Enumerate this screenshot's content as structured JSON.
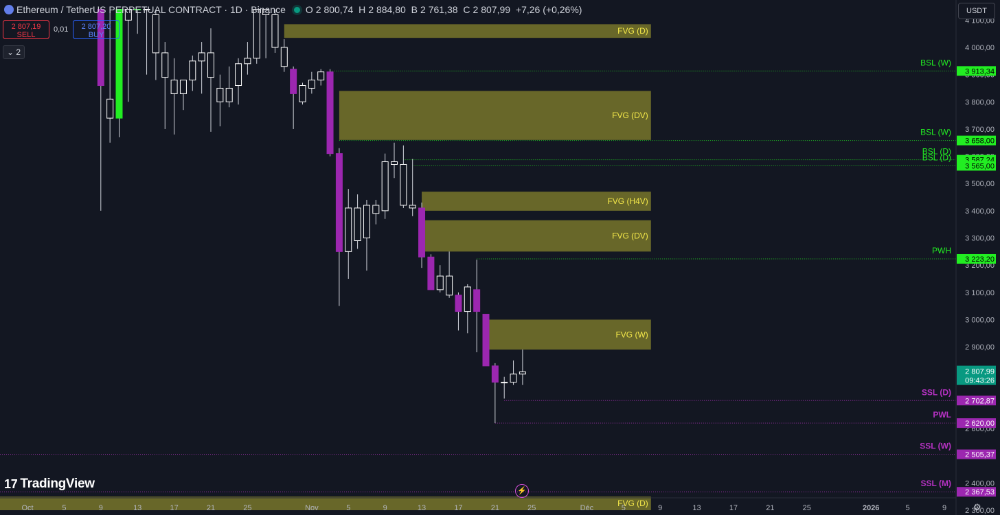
{
  "header": {
    "symbol": "Ethereum / TetherUS PERPETUAL CONTRACT · 1D · Binance",
    "o_label": "O",
    "o": "2 800,74",
    "h_label": "H",
    "h": "2 884,80",
    "b_label": "B",
    "b": "2 761,38",
    "c_label": "C",
    "c": "2 807,99",
    "change": "+7,26 (+0,26%)"
  },
  "trade": {
    "sell_price": "2 807,19",
    "sell_label": "SELL",
    "spread": "0,01",
    "buy_price": "2 807,20",
    "buy_label": "BUY"
  },
  "collapse_label": "2",
  "currency_button": "USDT",
  "logo_text": "TradingView",
  "colors": {
    "background": "#131722",
    "fvg": "#807d2c",
    "fvg_text": "#f5e94a",
    "bsl": "#22ee22",
    "ssl": "#b732c4",
    "bull_body": "#22ee22",
    "bear_body": "#9c27b0",
    "neutral_body": "#ffffff"
  },
  "icons": {
    "gear": "gear-icon",
    "bolt": "lightning-icon",
    "eth": "ethereum-icon"
  },
  "chart_data": {
    "type": "candlestick",
    "title": "Ethereum / TetherUS PERPETUAL CONTRACT · 1D · Binance",
    "y_axis_labels": [
      "4 100,00",
      "4 000,00",
      "3 900,00",
      "3 800,00",
      "3 700,00",
      "3 600,00",
      "3 500,00",
      "3 400,00",
      "3 300,00",
      "3 200,00",
      "3 100,00",
      "3 000,00",
      "2 900,00",
      "2 800,00",
      "2 700,00",
      "2 600,00",
      "2 500,00",
      "2 400,00",
      "2 300,00"
    ],
    "y_ticks": [
      4100,
      4000,
      3900,
      3800,
      3700,
      3600,
      3500,
      3400,
      3300,
      3200,
      3100,
      3000,
      2900,
      2800,
      2700,
      2600,
      2500,
      2400,
      2300
    ],
    "ylim": [
      2280,
      4140
    ],
    "x_axis_labels": [
      {
        "date": "2025-10-01",
        "label": "Oct"
      },
      {
        "date": "2025-10-05",
        "label": "5"
      },
      {
        "date": "2025-10-09",
        "label": "9"
      },
      {
        "date": "2025-10-13",
        "label": "13"
      },
      {
        "date": "2025-10-17",
        "label": "17"
      },
      {
        "date": "2025-10-21",
        "label": "21"
      },
      {
        "date": "2025-10-25",
        "label": "25"
      },
      {
        "date": "2025-11-01",
        "label": "Nov"
      },
      {
        "date": "2025-11-05",
        "label": "5"
      },
      {
        "date": "2025-11-09",
        "label": "9"
      },
      {
        "date": "2025-11-13",
        "label": "13"
      },
      {
        "date": "2025-11-17",
        "label": "17"
      },
      {
        "date": "2025-11-21",
        "label": "21"
      },
      {
        "date": "2025-11-25",
        "label": "25"
      },
      {
        "date": "2025-12-01",
        "label": "Déc"
      },
      {
        "date": "2025-12-05",
        "label": "5"
      },
      {
        "date": "2025-12-09",
        "label": "9"
      },
      {
        "date": "2025-12-13",
        "label": "13"
      },
      {
        "date": "2025-12-17",
        "label": "17"
      },
      {
        "date": "2025-12-21",
        "label": "21"
      },
      {
        "date": "2025-12-25",
        "label": "25"
      },
      {
        "date": "2026-01-01",
        "label": "2026"
      },
      {
        "date": "2026-01-05",
        "label": "5"
      },
      {
        "date": "2026-01-09",
        "label": "9"
      }
    ],
    "candles": [
      {
        "date": "2025-10-09",
        "o": 4140,
        "h": 4140,
        "l": 3400,
        "c": 3860,
        "style": "bear"
      },
      {
        "date": "2025-10-10",
        "o": 3740,
        "h": 4140,
        "l": 3650,
        "c": 3810,
        "style": "neutral"
      },
      {
        "date": "2025-10-11",
        "o": 3740,
        "h": 4140,
        "l": 3670,
        "c": 4140,
        "style": "bull"
      },
      {
        "date": "2025-10-12",
        "o": 4100,
        "h": 4140,
        "l": 3800,
        "c": 4140,
        "style": "neutral"
      },
      {
        "date": "2025-10-13",
        "o": 4140,
        "h": 4140,
        "l": 4050,
        "c": 4140,
        "style": "bull"
      },
      {
        "date": "2025-10-14",
        "o": 4140,
        "h": 4140,
        "l": 3900,
        "c": 4140,
        "style": "neutral"
      },
      {
        "date": "2025-10-15",
        "o": 4120,
        "h": 4140,
        "l": 3880,
        "c": 3980,
        "style": "neutral"
      },
      {
        "date": "2025-10-16",
        "o": 3980,
        "h": 4020,
        "l": 3700,
        "c": 3890,
        "style": "neutral"
      },
      {
        "date": "2025-10-17",
        "o": 3880,
        "h": 3960,
        "l": 3680,
        "c": 3830,
        "style": "neutral"
      },
      {
        "date": "2025-10-18",
        "o": 3830,
        "h": 3880,
        "l": 3770,
        "c": 3880,
        "style": "neutral"
      },
      {
        "date": "2025-10-19",
        "o": 3880,
        "h": 3970,
        "l": 3840,
        "c": 3950,
        "style": "neutral"
      },
      {
        "date": "2025-10-20",
        "o": 3950,
        "h": 4020,
        "l": 3830,
        "c": 3980,
        "style": "neutral"
      },
      {
        "date": "2025-10-21",
        "o": 3980,
        "h": 4070,
        "l": 3690,
        "c": 3890,
        "style": "neutral"
      },
      {
        "date": "2025-10-22",
        "o": 3850,
        "h": 3900,
        "l": 3710,
        "c": 3800,
        "style": "neutral"
      },
      {
        "date": "2025-10-23",
        "o": 3800,
        "h": 3930,
        "l": 3780,
        "c": 3850,
        "style": "neutral"
      },
      {
        "date": "2025-10-24",
        "o": 3860,
        "h": 3960,
        "l": 3790,
        "c": 3940,
        "style": "neutral"
      },
      {
        "date": "2025-10-25",
        "o": 3940,
        "h": 4020,
        "l": 3900,
        "c": 3960,
        "style": "neutral"
      },
      {
        "date": "2025-10-26",
        "o": 3960,
        "h": 4140,
        "l": 3940,
        "c": 4140,
        "style": "neutral"
      },
      {
        "date": "2025-10-27",
        "o": 4140,
        "h": 4140,
        "l": 3960,
        "c": 4120,
        "style": "neutral"
      },
      {
        "date": "2025-10-28",
        "o": 4120,
        "h": 4140,
        "l": 3980,
        "c": 4000,
        "style": "neutral"
      },
      {
        "date": "2025-10-29",
        "o": 4000,
        "h": 4030,
        "l": 3910,
        "c": 3930,
        "style": "neutral"
      },
      {
        "date": "2025-10-30",
        "o": 3920,
        "h": 3930,
        "l": 3700,
        "c": 3830,
        "style": "bear"
      },
      {
        "date": "2025-10-31",
        "o": 3800,
        "h": 3870,
        "l": 3790,
        "c": 3860,
        "style": "neutral"
      },
      {
        "date": "2025-11-01",
        "o": 3850,
        "h": 3910,
        "l": 3830,
        "c": 3880,
        "style": "neutral"
      },
      {
        "date": "2025-11-02",
        "o": 3880,
        "h": 3920,
        "l": 3860,
        "c": 3910,
        "style": "neutral"
      },
      {
        "date": "2025-11-03",
        "o": 3910,
        "h": 3920,
        "l": 3600,
        "c": 3610,
        "style": "bear"
      },
      {
        "date": "2025-11-04",
        "o": 3610,
        "h": 3630,
        "l": 3050,
        "c": 3250,
        "style": "bear"
      },
      {
        "date": "2025-11-05",
        "o": 3250,
        "h": 3480,
        "l": 3150,
        "c": 3410,
        "style": "neutral"
      },
      {
        "date": "2025-11-06",
        "o": 3410,
        "h": 3460,
        "l": 3260,
        "c": 3290,
        "style": "neutral"
      },
      {
        "date": "2025-11-07",
        "o": 3300,
        "h": 3440,
        "l": 3180,
        "c": 3420,
        "style": "neutral"
      },
      {
        "date": "2025-11-08",
        "o": 3420,
        "h": 3440,
        "l": 3350,
        "c": 3390,
        "style": "neutral"
      },
      {
        "date": "2025-11-09",
        "o": 3400,
        "h": 3610,
        "l": 3370,
        "c": 3580,
        "style": "neutral"
      },
      {
        "date": "2025-11-10",
        "o": 3580,
        "h": 3650,
        "l": 3520,
        "c": 3570,
        "style": "neutral"
      },
      {
        "date": "2025-11-11",
        "o": 3570,
        "h": 3640,
        "l": 3410,
        "c": 3420,
        "style": "neutral"
      },
      {
        "date": "2025-11-12",
        "o": 3420,
        "h": 3590,
        "l": 3380,
        "c": 3410,
        "style": "neutral"
      },
      {
        "date": "2025-11-13",
        "o": 3410,
        "h": 3430,
        "l": 3190,
        "c": 3230,
        "style": "bear"
      },
      {
        "date": "2025-11-14",
        "o": 3230,
        "h": 3240,
        "l": 3110,
        "c": 3110,
        "style": "bear"
      },
      {
        "date": "2025-11-15",
        "o": 3110,
        "h": 3200,
        "l": 3100,
        "c": 3160,
        "style": "neutral"
      },
      {
        "date": "2025-11-16",
        "o": 3160,
        "h": 3250,
        "l": 3080,
        "c": 3090,
        "style": "neutral"
      },
      {
        "date": "2025-11-17",
        "o": 3090,
        "h": 3100,
        "l": 2960,
        "c": 3030,
        "style": "bear"
      },
      {
        "date": "2025-11-18",
        "o": 3030,
        "h": 3130,
        "l": 2950,
        "c": 3120,
        "style": "neutral"
      },
      {
        "date": "2025-11-19",
        "o": 3110,
        "h": 3220,
        "l": 2880,
        "c": 3030,
        "style": "bear"
      },
      {
        "date": "2025-11-20",
        "o": 3020,
        "h": 3020,
        "l": 2830,
        "c": 2830,
        "style": "bear"
      },
      {
        "date": "2025-11-21",
        "o": 2830,
        "h": 2840,
        "l": 2620,
        "c": 2770,
        "style": "bear"
      },
      {
        "date": "2025-11-22",
        "o": 2770,
        "h": 2790,
        "l": 2710,
        "c": 2770,
        "style": "neutral"
      },
      {
        "date": "2025-11-23",
        "o": 2770,
        "h": 2850,
        "l": 2760,
        "c": 2800,
        "style": "neutral"
      },
      {
        "date": "2025-11-24",
        "o": 2800,
        "h": 2890,
        "l": 2760,
        "c": 2808,
        "style": "neutral"
      }
    ],
    "fvg_zones": [
      {
        "label": "FVG (D)",
        "top": 4085,
        "bottom": 4035,
        "start": "2025-10-29"
      },
      {
        "label": "FVG (DV)",
        "top": 3840,
        "bottom": 3660,
        "start": "2025-11-04"
      },
      {
        "label": "FVG (H4V)",
        "top": 3470,
        "bottom": 3400,
        "start": "2025-11-13"
      },
      {
        "label": "FVG (DV)",
        "top": 3365,
        "bottom": 3250,
        "start": "2025-11-13"
      },
      {
        "label": "FVG (W)",
        "top": 3000,
        "bottom": 2890,
        "start": "2025-11-20"
      },
      {
        "label": "FVG (D)",
        "top": 2350,
        "bottom": 2300,
        "start": "2025-09-01"
      }
    ],
    "levels": [
      {
        "label": "BSL (W)",
        "value": 3913.34,
        "price_label": "3 913,34",
        "kind": "bsl",
        "start": "2025-11-03"
      },
      {
        "label": "BSL (W)",
        "value": 3658.0,
        "price_label": "3 658,00",
        "kind": "bsl",
        "start": "2025-11-04"
      },
      {
        "label": "BSL (D)",
        "value": 3587.24,
        "price_label": "3 587,24",
        "kind": "bsl",
        "start": "2025-11-11"
      },
      {
        "label": "BSL (D)",
        "value": 3565.0,
        "price_label": "3 565,00",
        "kind": "bsl",
        "start": "2025-11-12"
      },
      {
        "label": "PWH",
        "value": 3223.2,
        "price_label": "3 223,20",
        "kind": "bsl",
        "start": "2025-11-19"
      },
      {
        "label": "SSL (D)",
        "value": 2702.87,
        "price_label": "2 702,87",
        "kind": "ssl",
        "start": "2025-11-22"
      },
      {
        "label": "PWL",
        "value": 2620.0,
        "price_label": "2 620,00",
        "kind": "ssl",
        "start": "2025-11-21"
      },
      {
        "label": "SSL (W)",
        "value": 2505.37,
        "price_label": "2 505,37",
        "kind": "ssl",
        "start": "2025-09-01"
      },
      {
        "label": "SSL (M)",
        "value": 2367.53,
        "price_label": "2 367,53",
        "kind": "ssl",
        "start": "2025-09-01"
      }
    ],
    "current_price": {
      "value": 2807.99,
      "price_label": "2 807,99",
      "countdown": "09:43:26"
    }
  }
}
